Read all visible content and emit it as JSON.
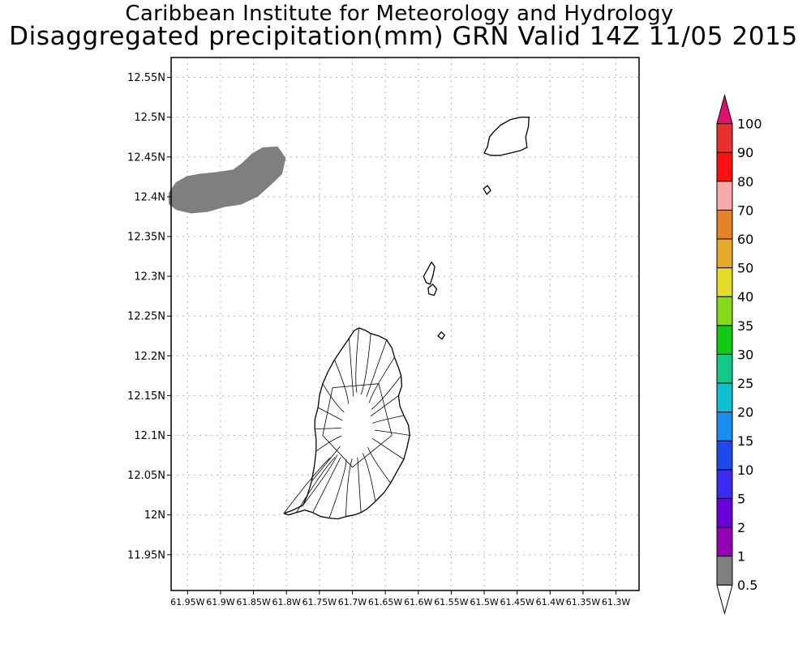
{
  "header": {
    "line1": "Caribbean Institute for Meteorology and Hydrology",
    "line2": "Disaggregated precipitation(mm) GRN Valid 14Z 11/05 2015"
  },
  "chart_data": {
    "type": "heatmap",
    "title": "Disaggregated precipitation(mm) GRN Valid 14Z 11/05 2015",
    "xlim": [
      -61.975,
      -61.265
    ],
    "ylim": [
      11.905,
      12.575
    ],
    "grid": true,
    "x_ticks": [
      {
        "value": -61.95,
        "label": "61.95W"
      },
      {
        "value": -61.9,
        "label": "61.9W"
      },
      {
        "value": -61.85,
        "label": "61.85W"
      },
      {
        "value": -61.8,
        "label": "61.8W"
      },
      {
        "value": -61.75,
        "label": "61.75W"
      },
      {
        "value": -61.7,
        "label": "61.7W"
      },
      {
        "value": -61.65,
        "label": "61.65W"
      },
      {
        "value": -61.6,
        "label": "61.6W"
      },
      {
        "value": -61.55,
        "label": "61.55W"
      },
      {
        "value": -61.5,
        "label": "61.5W"
      },
      {
        "value": -61.45,
        "label": "61.45W"
      },
      {
        "value": -61.4,
        "label": "61.4W"
      },
      {
        "value": -61.35,
        "label": "61.35W"
      },
      {
        "value": -61.3,
        "label": "61.3W"
      }
    ],
    "y_ticks": [
      {
        "value": 11.95,
        "label": "11.95N"
      },
      {
        "value": 12.0,
        "label": "12N"
      },
      {
        "value": 12.05,
        "label": "12.05N"
      },
      {
        "value": 12.1,
        "label": "12.1N"
      },
      {
        "value": 12.15,
        "label": "12.15N"
      },
      {
        "value": 12.2,
        "label": "12.2N"
      },
      {
        "value": 12.25,
        "label": "12.25N"
      },
      {
        "value": 12.3,
        "label": "12.3N"
      },
      {
        "value": 12.35,
        "label": "12.35N"
      },
      {
        "value": 12.4,
        "label": "12.4N"
      },
      {
        "value": 12.45,
        "label": "12.45N"
      },
      {
        "value": 12.5,
        "label": "12.5N"
      },
      {
        "value": 12.55,
        "label": "12.55N"
      }
    ],
    "precip_areas": [
      {
        "bin": "0.5-1",
        "color": "#7f7f7f",
        "outline": [
          [
            -61.975,
            12.404
          ],
          [
            -61.965,
            12.416
          ],
          [
            -61.95,
            12.423
          ],
          [
            -61.93,
            12.426
          ],
          [
            -61.905,
            12.428
          ],
          [
            -61.88,
            12.431
          ],
          [
            -61.865,
            12.44
          ],
          [
            -61.85,
            12.452
          ],
          [
            -61.835,
            12.459
          ],
          [
            -61.815,
            12.46
          ],
          [
            -61.805,
            12.448
          ],
          [
            -61.81,
            12.43
          ],
          [
            -61.825,
            12.418
          ],
          [
            -61.845,
            12.403
          ],
          [
            -61.87,
            12.393
          ],
          [
            -61.895,
            12.39
          ],
          [
            -61.92,
            12.384
          ],
          [
            -61.945,
            12.382
          ],
          [
            -61.965,
            12.386
          ],
          [
            -61.975,
            12.392
          ]
        ]
      }
    ],
    "islands": [
      {
        "name": "",
        "outline": [
          [
            -61.804,
            12.002
          ],
          [
            -61.793,
            12.005
          ],
          [
            -61.775,
            12.012
          ],
          [
            -61.768,
            12.025
          ],
          [
            -61.762,
            12.042
          ],
          [
            -61.758,
            12.06
          ],
          [
            -61.755,
            12.08
          ],
          [
            -61.755,
            12.095
          ],
          [
            -61.757,
            12.108
          ],
          [
            -61.757,
            12.12
          ],
          [
            -61.752,
            12.135
          ],
          [
            -61.75,
            12.15
          ],
          [
            -61.745,
            12.165
          ],
          [
            -61.737,
            12.18
          ],
          [
            -61.727,
            12.195
          ],
          [
            -61.715,
            12.21
          ],
          [
            -61.705,
            12.222
          ],
          [
            -61.697,
            12.232
          ],
          [
            -61.69,
            12.235
          ],
          [
            -61.68,
            12.232
          ],
          [
            -61.672,
            12.228
          ],
          [
            -61.66,
            12.225
          ],
          [
            -61.648,
            12.22
          ],
          [
            -61.64,
            12.21
          ],
          [
            -61.636,
            12.198
          ],
          [
            -61.63,
            12.185
          ],
          [
            -61.626,
            12.175
          ],
          [
            -61.625,
            12.162
          ],
          [
            -61.63,
            12.15
          ],
          [
            -61.628,
            12.137
          ],
          [
            -61.622,
            12.125
          ],
          [
            -61.615,
            12.113
          ],
          [
            -61.613,
            12.1
          ],
          [
            -61.617,
            12.085
          ],
          [
            -61.622,
            12.07
          ],
          [
            -61.632,
            12.055
          ],
          [
            -61.642,
            12.04
          ],
          [
            -61.652,
            12.028
          ],
          [
            -61.665,
            12.017
          ],
          [
            -61.677,
            12.008
          ],
          [
            -61.687,
            12.003
          ],
          [
            -61.697,
            12.0
          ],
          [
            -61.71,
            11.998
          ],
          [
            -61.722,
            11.995
          ],
          [
            -61.735,
            11.996
          ],
          [
            -61.748,
            11.998
          ],
          [
            -61.76,
            12.003
          ],
          [
            -61.772,
            12.006
          ],
          [
            -61.785,
            12.003
          ],
          [
            -61.797,
            12.0
          ]
        ]
      },
      {
        "name": "",
        "outline": [
          [
            -61.5,
            12.455
          ],
          [
            -61.495,
            12.463
          ],
          [
            -61.492,
            12.475
          ],
          [
            -61.485,
            12.482
          ],
          [
            -61.475,
            12.49
          ],
          [
            -61.46,
            12.497
          ],
          [
            -61.445,
            12.5
          ],
          [
            -61.432,
            12.5
          ],
          [
            -61.433,
            12.488
          ],
          [
            -61.437,
            12.475
          ],
          [
            -61.435,
            12.462
          ],
          [
            -61.445,
            12.458
          ],
          [
            -61.46,
            12.455
          ],
          [
            -61.475,
            12.452
          ],
          [
            -61.49,
            12.452
          ]
        ]
      },
      {
        "name": "",
        "outline": [
          [
            -61.592,
            12.3
          ],
          [
            -61.585,
            12.31
          ],
          [
            -61.58,
            12.318
          ],
          [
            -61.575,
            12.312
          ],
          [
            -61.578,
            12.3
          ],
          [
            -61.582,
            12.29
          ],
          [
            -61.588,
            12.292
          ]
        ]
      },
      {
        "name": "",
        "outline": [
          [
            -61.585,
            12.285
          ],
          [
            -61.578,
            12.29
          ],
          [
            -61.572,
            12.284
          ],
          [
            -61.576,
            12.276
          ],
          [
            -61.584,
            12.278
          ]
        ]
      },
      {
        "name": "",
        "outline": [
          [
            -61.57,
            12.225
          ],
          [
            -61.565,
            12.23
          ],
          [
            -61.56,
            12.226
          ],
          [
            -61.564,
            12.221
          ]
        ]
      },
      {
        "name": "",
        "outline": [
          [
            -61.501,
            12.41
          ],
          [
            -61.495,
            12.414
          ],
          [
            -61.49,
            12.408
          ],
          [
            -61.496,
            12.403
          ]
        ]
      }
    ],
    "colorbar": {
      "colors": [
        "#7f7f7f",
        "#9400b4",
        "#6a00d8",
        "#3c2dee",
        "#1f4ae8",
        "#1a8ef0",
        "#12bfcf",
        "#14c888",
        "#14c814",
        "#88d81e",
        "#e3dc2b",
        "#e4a82a",
        "#e4822a",
        "#f8aaaa",
        "#ff1010",
        "#e83030",
        "#e01070"
      ],
      "labels": [
        "0.5",
        "1",
        "2",
        "5",
        "10",
        "15",
        "20",
        "25",
        "30",
        "35",
        "40",
        "50",
        "60",
        "70",
        "80",
        "90",
        "100"
      ]
    }
  }
}
